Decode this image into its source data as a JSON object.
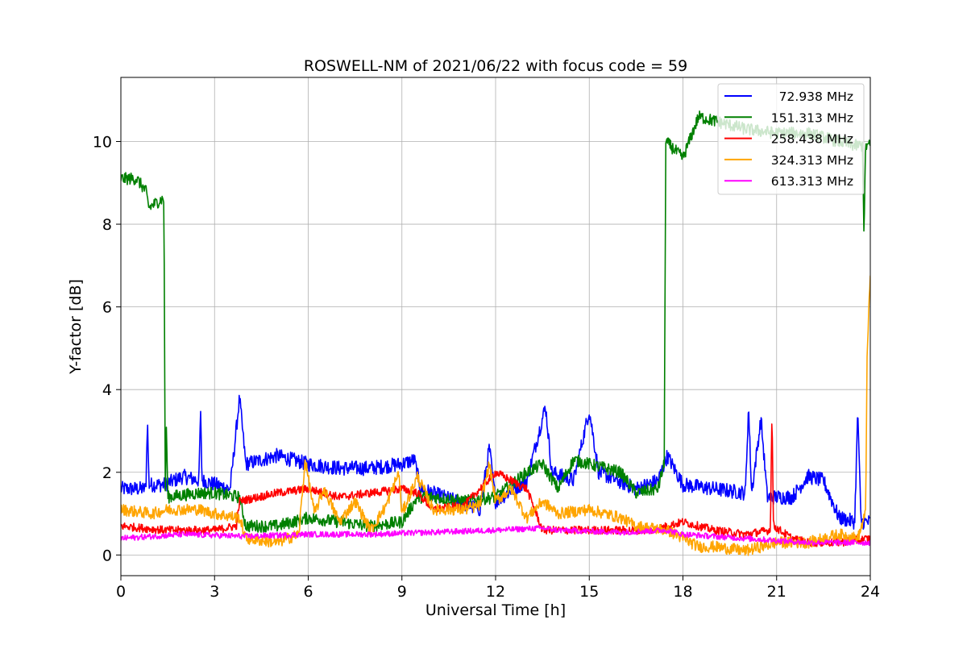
{
  "chart_data": {
    "type": "line",
    "title": "ROSWELL-NM of 2021/06/22 with focus code = 59",
    "xlabel": "Universal Time [h]",
    "ylabel": "Y-factor [dB]",
    "xlim": [
      0,
      24
    ],
    "ylim": [
      -0.5,
      11.55
    ],
    "xticks": [
      0,
      3,
      6,
      9,
      12,
      15,
      18,
      21,
      24
    ],
    "yticks": [
      0,
      2,
      4,
      6,
      8,
      10
    ],
    "grid": true,
    "legend_position": "top-right",
    "series": [
      {
        "name": "72.938 MHz",
        "color": "#0000ff",
        "noise": 0.18,
        "points": [
          [
            0,
            1.6
          ],
          [
            0.8,
            1.6
          ],
          [
            0.85,
            3.3
          ],
          [
            0.9,
            1.7
          ],
          [
            1.4,
            1.7
          ],
          [
            2.0,
            1.9
          ],
          [
            2.5,
            1.8
          ],
          [
            2.55,
            3.5
          ],
          [
            2.6,
            1.8
          ],
          [
            3.5,
            1.6
          ],
          [
            3.8,
            3.8
          ],
          [
            4.0,
            2.2
          ],
          [
            5.0,
            2.4
          ],
          [
            6.0,
            2.2
          ],
          [
            7.0,
            2.1
          ],
          [
            8.0,
            2.1
          ],
          [
            9.0,
            2.2
          ],
          [
            9.4,
            2.3
          ],
          [
            9.6,
            1.6
          ],
          [
            11.5,
            1.1
          ],
          [
            11.8,
            2.6
          ],
          [
            12.0,
            1.3
          ],
          [
            13.0,
            1.8
          ],
          [
            13.6,
            3.6
          ],
          [
            13.8,
            2.0
          ],
          [
            14.5,
            1.8
          ],
          [
            15.0,
            3.5
          ],
          [
            15.3,
            2.0
          ],
          [
            16.5,
            1.6
          ],
          [
            17.2,
            1.8
          ],
          [
            17.5,
            2.4
          ],
          [
            18.0,
            1.7
          ],
          [
            19.0,
            1.6
          ],
          [
            20.0,
            1.5
          ],
          [
            20.1,
            3.6
          ],
          [
            20.2,
            1.5
          ],
          [
            20.5,
            3.3
          ],
          [
            20.7,
            1.4
          ],
          [
            21.5,
            1.4
          ],
          [
            22.0,
            1.9
          ],
          [
            22.5,
            1.8
          ],
          [
            23.0,
            0.9
          ],
          [
            23.5,
            0.8
          ],
          [
            23.6,
            3.5
          ],
          [
            23.7,
            0.8
          ],
          [
            24.0,
            0.8
          ]
        ]
      },
      {
        "name": "151.313 MHz",
        "color": "#008000",
        "noise": 0.15,
        "points": [
          [
            0,
            9.1
          ],
          [
            0.5,
            9.1
          ],
          [
            0.8,
            8.8
          ],
          [
            0.9,
            8.4
          ],
          [
            1.3,
            8.6
          ],
          [
            1.38,
            8.6
          ],
          [
            1.42,
            1.5
          ],
          [
            1.46,
            3.2
          ],
          [
            1.5,
            1.4
          ],
          [
            2.5,
            1.5
          ],
          [
            3.0,
            1.5
          ],
          [
            3.8,
            1.4
          ],
          [
            4.0,
            0.7
          ],
          [
            5.0,
            0.7
          ],
          [
            6.0,
            0.9
          ],
          [
            7.0,
            0.8
          ],
          [
            8.0,
            0.7
          ],
          [
            9.0,
            0.8
          ],
          [
            9.5,
            1.4
          ],
          [
            10.0,
            1.4
          ],
          [
            11.0,
            1.3
          ],
          [
            12.0,
            1.4
          ],
          [
            13.0,
            2.0
          ],
          [
            13.5,
            2.2
          ],
          [
            14.0,
            1.6
          ],
          [
            14.5,
            2.3
          ],
          [
            15.0,
            2.2
          ],
          [
            16.0,
            2.0
          ],
          [
            16.5,
            1.5
          ],
          [
            17.2,
            1.6
          ],
          [
            17.4,
            2.2
          ],
          [
            17.45,
            10.0
          ],
          [
            18.0,
            9.6
          ],
          [
            18.3,
            10.2
          ],
          [
            18.5,
            10.6
          ],
          [
            19.0,
            10.5
          ],
          [
            20.0,
            10.3
          ],
          [
            21.0,
            10.2
          ],
          [
            22.0,
            10.2
          ],
          [
            23.0,
            10.0
          ],
          [
            23.5,
            9.9
          ],
          [
            23.75,
            9.9
          ],
          [
            23.8,
            7.7
          ],
          [
            23.85,
            9.9
          ],
          [
            24.0,
            9.9
          ]
        ]
      },
      {
        "name": "258.438 MHz",
        "color": "#ff0000",
        "noise": 0.1,
        "points": [
          [
            0,
            0.7
          ],
          [
            1.4,
            0.6
          ],
          [
            2.0,
            0.6
          ],
          [
            3.0,
            0.6
          ],
          [
            3.7,
            0.7
          ],
          [
            3.8,
            1.3
          ],
          [
            5.0,
            1.5
          ],
          [
            6.0,
            1.6
          ],
          [
            7.0,
            1.4
          ],
          [
            8.0,
            1.5
          ],
          [
            9.0,
            1.6
          ],
          [
            9.5,
            1.5
          ],
          [
            10.0,
            1.1
          ],
          [
            11.0,
            1.2
          ],
          [
            11.5,
            1.6
          ],
          [
            12.0,
            2.0
          ],
          [
            13.0,
            1.6
          ],
          [
            13.5,
            0.6
          ],
          [
            14.0,
            0.6
          ],
          [
            15.0,
            0.6
          ],
          [
            16.0,
            0.6
          ],
          [
            17.0,
            0.6
          ],
          [
            18.0,
            0.8
          ],
          [
            19.0,
            0.6
          ],
          [
            20.0,
            0.5
          ],
          [
            20.8,
            0.6
          ],
          [
            20.85,
            3.5
          ],
          [
            20.9,
            0.7
          ],
          [
            21.5,
            0.4
          ],
          [
            22.0,
            0.3
          ],
          [
            23.0,
            0.3
          ],
          [
            24.0,
            0.4
          ]
        ]
      },
      {
        "name": "324.313 MHz",
        "color": "#ffa500",
        "noise": 0.14,
        "points": [
          [
            0,
            1.1
          ],
          [
            1.0,
            1.0
          ],
          [
            1.5,
            1.1
          ],
          [
            2.5,
            1.1
          ],
          [
            3.0,
            1.0
          ],
          [
            3.8,
            0.9
          ],
          [
            4.0,
            0.4
          ],
          [
            5.0,
            0.3
          ],
          [
            5.7,
            0.5
          ],
          [
            5.9,
            2.3
          ],
          [
            6.2,
            1.0
          ],
          [
            6.5,
            1.6
          ],
          [
            7.0,
            0.8
          ],
          [
            7.5,
            1.3
          ],
          [
            8.0,
            0.6
          ],
          [
            8.5,
            1.2
          ],
          [
            8.9,
            2.0
          ],
          [
            9.0,
            1.0
          ],
          [
            9.5,
            1.9
          ],
          [
            10.0,
            1.1
          ],
          [
            11.0,
            1.1
          ],
          [
            11.5,
            1.2
          ],
          [
            11.8,
            2.2
          ],
          [
            12.0,
            1.3
          ],
          [
            12.5,
            1.6
          ],
          [
            13.0,
            0.9
          ],
          [
            13.5,
            1.3
          ],
          [
            14.0,
            1.0
          ],
          [
            15.0,
            1.1
          ],
          [
            16.0,
            0.9
          ],
          [
            16.5,
            0.7
          ],
          [
            17.5,
            0.6
          ],
          [
            18.5,
            0.2
          ],
          [
            19.0,
            0.2
          ],
          [
            20.0,
            0.1
          ],
          [
            20.5,
            0.2
          ],
          [
            21.0,
            0.3
          ],
          [
            22.0,
            0.3
          ],
          [
            23.0,
            0.5
          ],
          [
            23.6,
            0.4
          ],
          [
            23.85,
            1.0
          ],
          [
            23.9,
            5.0
          ],
          [
            24.0,
            6.7
          ]
        ]
      },
      {
        "name": "613.313 MHz",
        "color": "#ff00ff",
        "noise": 0.07,
        "points": [
          [
            0,
            0.4
          ],
          [
            2.0,
            0.5
          ],
          [
            4.0,
            0.45
          ],
          [
            6.0,
            0.5
          ],
          [
            8.0,
            0.5
          ],
          [
            10.0,
            0.55
          ],
          [
            12.0,
            0.6
          ],
          [
            13.5,
            0.65
          ],
          [
            14.0,
            0.6
          ],
          [
            16.0,
            0.55
          ],
          [
            17.5,
            0.6
          ],
          [
            18.0,
            0.5
          ],
          [
            20.0,
            0.4
          ],
          [
            21.0,
            0.35
          ],
          [
            22.0,
            0.3
          ],
          [
            23.0,
            0.3
          ],
          [
            24.0,
            0.3
          ]
        ]
      }
    ]
  }
}
